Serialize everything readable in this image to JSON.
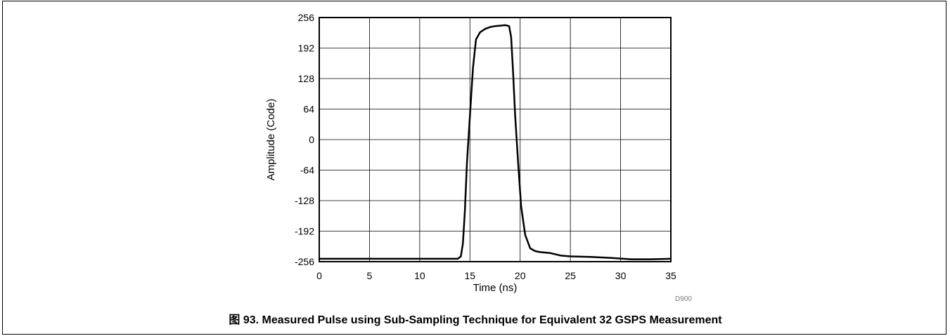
{
  "chart_data": {
    "type": "line",
    "title": "",
    "xlabel": "Time (ns)",
    "ylabel": "Amplitude (Code)",
    "xlim": [
      0,
      35
    ],
    "ylim": [
      -256,
      256
    ],
    "xticks": [
      0,
      5,
      10,
      15,
      20,
      25,
      30,
      35
    ],
    "yticks": [
      256,
      192,
      128,
      64,
      0,
      -64,
      -128,
      -192,
      -256
    ],
    "grid": true,
    "series": [
      {
        "x": [
          0,
          5,
          10,
          13.8,
          14.1,
          14.3,
          14.5,
          14.7,
          15.0,
          15.3,
          15.6,
          16.0,
          16.5,
          17.0,
          17.5,
          18.0,
          18.5,
          18.9,
          19.1,
          19.3,
          19.5,
          19.8,
          20.1,
          20.5,
          21.0,
          21.5,
          22.0,
          23.0,
          24.0,
          25.0,
          27.0,
          29.0,
          31.0,
          33.0,
          35.0
        ],
        "y": [
          -250,
          -250,
          -250,
          -250,
          -245,
          -218,
          -150,
          -50,
          50,
          150,
          210,
          225,
          232,
          236,
          238,
          239,
          240,
          238,
          215,
          140,
          50,
          -50,
          -140,
          -200,
          -228,
          -234,
          -236,
          -238,
          -243,
          -245,
          -246,
          -248,
          -251,
          -251,
          -250
        ]
      }
    ],
    "figure_code": "D900"
  },
  "caption": "图 93. Measured Pulse using Sub-Sampling Technique for Equivalent 32 GSPS Measurement",
  "colors": {
    "line": "#000000",
    "grid": "#000000",
    "frame": "#000000",
    "code": "#7a7a7a"
  }
}
